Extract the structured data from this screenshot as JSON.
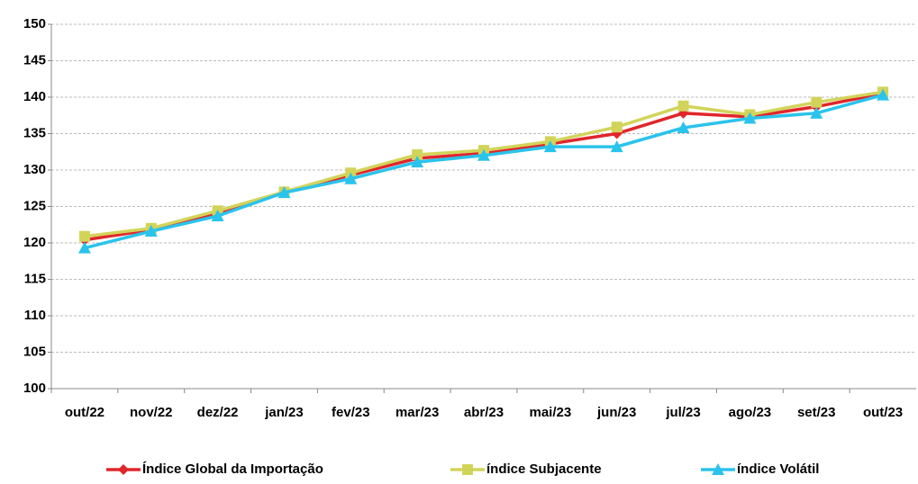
{
  "chart_data": {
    "type": "line",
    "categories": [
      "out/22",
      "nov/22",
      "dez/22",
      "jan/23",
      "fev/23",
      "mar/23",
      "abr/23",
      "mai/23",
      "jun/23",
      "jul/23",
      "ago/23",
      "set/23",
      "out/23"
    ],
    "series": [
      {
        "name": "Índice Global da Importação",
        "color": "#e0262b",
        "marker": "diamond",
        "values": [
          120.4,
          121.8,
          124.0,
          127.0,
          129.3,
          131.6,
          132.3,
          133.6,
          135.0,
          137.8,
          137.3,
          138.7,
          140.5
        ]
      },
      {
        "name": "índice Subjacente",
        "color": "#d2d45a",
        "marker": "square",
        "values": [
          120.9,
          122.0,
          124.4,
          127.0,
          129.6,
          132.1,
          132.7,
          133.9,
          135.9,
          138.8,
          137.6,
          139.3,
          140.7
        ]
      },
      {
        "name": "índice Volátil",
        "color": "#2ac3ec",
        "marker": "triangle",
        "values": [
          119.3,
          121.6,
          123.7,
          126.9,
          128.8,
          131.1,
          132.0,
          133.2,
          133.2,
          135.8,
          137.1,
          137.8,
          140.3
        ]
      }
    ],
    "ylim": [
      100,
      150
    ],
    "yticks": [
      100,
      105,
      110,
      115,
      120,
      125,
      130,
      135,
      140,
      145,
      150
    ],
    "grid": true,
    "legend": "bottom"
  }
}
